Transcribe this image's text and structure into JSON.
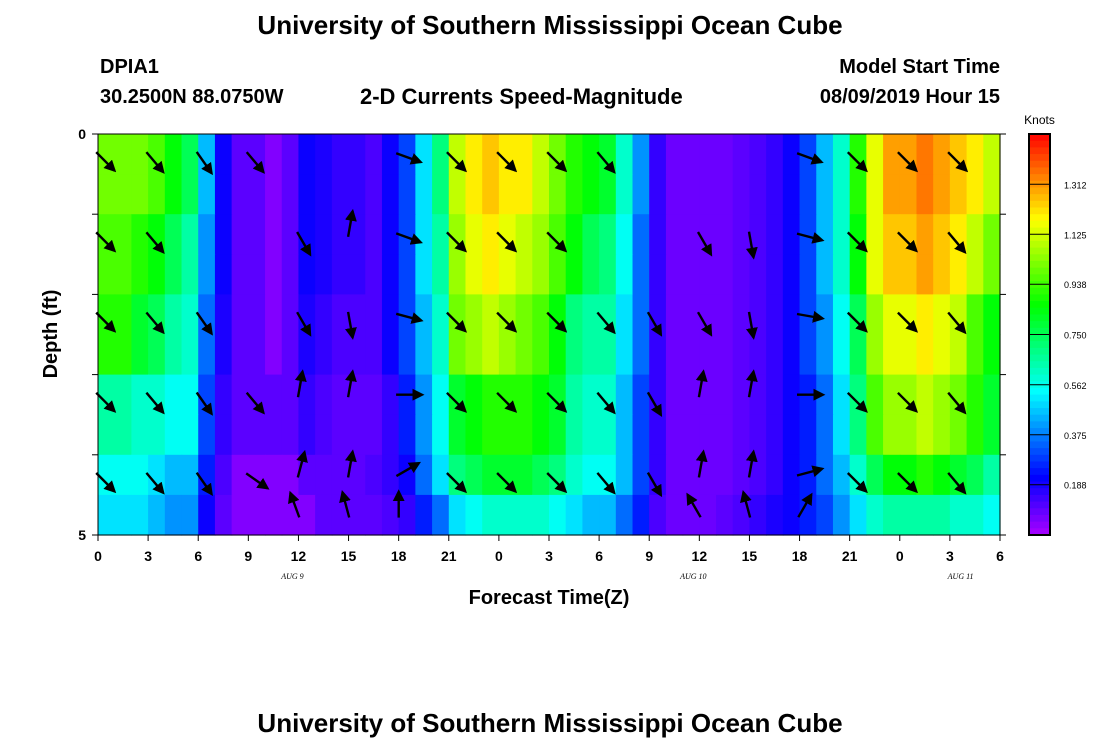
{
  "header": {
    "title": "University of Southern Mississippi Ocean Cube",
    "station_id": "DPIA1",
    "station_coords": "30.2500N 88.0750W",
    "subtitle": "2-D Currents Speed-Magnitude",
    "model_start_label": "Model Start Time",
    "model_start_value": "08/09/2019 Hour 15"
  },
  "footer": {
    "title": "University of Southern Mississippi Ocean Cube"
  },
  "chart_data": {
    "type": "heatmap",
    "title": "2-D Currents Speed-Magnitude",
    "xlabel": "Forecast Time(Z)",
    "ylabel": "Depth (ft)",
    "x_tick_labels": [
      "0",
      "3",
      "6",
      "9",
      "12",
      "15",
      "18",
      "21",
      "0",
      "3",
      "6",
      "9",
      "12",
      "15",
      "18",
      "21",
      "0",
      "3",
      "6"
    ],
    "x_ticks_hours": [
      0,
      3,
      6,
      9,
      12,
      15,
      18,
      21,
      24,
      27,
      30,
      33,
      36,
      39,
      42,
      45,
      48,
      51,
      54
    ],
    "x_range_hours": [
      0,
      54
    ],
    "date_labels": [
      {
        "text": "AUG 9",
        "hour": 12
      },
      {
        "text": "AUG 10",
        "hour": 36
      },
      {
        "text": "AUG 11",
        "hour": 52
      }
    ],
    "y_tick_labels": [
      "0",
      "5"
    ],
    "y_range": [
      0,
      5
    ],
    "colorbar": {
      "unit": "Knots",
      "tick_labels": [
        "1.312",
        "1.125",
        "0.938",
        "0.750",
        "0.562",
        "0.375",
        "0.188"
      ],
      "tick_values": [
        1.312,
        1.125,
        0.938,
        0.75,
        0.562,
        0.375,
        0.188
      ],
      "range": [
        0,
        1.5
      ]
    },
    "depth_rows": [
      0.25,
      0.75,
      1.25,
      1.75,
      2.25,
      2.75,
      3.25,
      3.75,
      4.25,
      4.75
    ],
    "time_cols_hours": [
      0,
      1,
      2,
      3,
      4,
      5,
      6,
      7,
      8,
      9,
      10,
      11,
      12,
      13,
      14,
      15,
      16,
      17,
      18,
      19,
      20,
      21,
      22,
      23,
      24,
      25,
      26,
      27,
      28,
      29,
      30,
      31,
      32,
      33,
      34,
      35,
      36,
      37,
      38,
      39,
      40,
      41,
      42,
      43,
      44,
      45,
      46,
      47,
      48,
      49,
      50,
      51,
      52,
      53
    ],
    "speed_grid": [
      [
        1.0,
        1.0,
        1.0,
        0.95,
        0.85,
        0.75,
        0.45,
        0.2,
        0.1,
        0.1,
        0.05,
        0.1,
        0.2,
        0.18,
        0.15,
        0.15,
        0.12,
        0.2,
        0.3,
        0.5,
        0.7,
        1.1,
        1.2,
        1.25,
        1.2,
        1.2,
        1.1,
        1.0,
        0.9,
        0.85,
        0.8,
        0.6,
        0.4,
        0.15,
        0.08,
        0.08,
        0.08,
        0.08,
        0.1,
        0.12,
        0.15,
        0.2,
        0.3,
        0.45,
        0.6,
        0.9,
        1.15,
        1.3,
        1.3,
        1.35,
        1.3,
        1.25,
        1.2,
        1.1
      ],
      [
        1.0,
        1.0,
        1.0,
        0.95,
        0.85,
        0.75,
        0.45,
        0.2,
        0.1,
        0.1,
        0.05,
        0.1,
        0.2,
        0.18,
        0.15,
        0.15,
        0.12,
        0.2,
        0.3,
        0.5,
        0.7,
        1.1,
        1.2,
        1.25,
        1.2,
        1.2,
        1.1,
        1.0,
        0.9,
        0.85,
        0.8,
        0.6,
        0.4,
        0.15,
        0.08,
        0.08,
        0.08,
        0.08,
        0.1,
        0.12,
        0.15,
        0.2,
        0.3,
        0.45,
        0.6,
        0.9,
        1.15,
        1.3,
        1.3,
        1.35,
        1.3,
        1.25,
        1.2,
        1.1
      ],
      [
        0.95,
        0.95,
        0.9,
        0.85,
        0.75,
        0.65,
        0.4,
        0.2,
        0.1,
        0.1,
        0.05,
        0.1,
        0.2,
        0.18,
        0.15,
        0.15,
        0.12,
        0.2,
        0.3,
        0.5,
        0.65,
        1.05,
        1.15,
        1.2,
        1.15,
        1.1,
        1.05,
        0.95,
        0.85,
        0.75,
        0.7,
        0.55,
        0.35,
        0.15,
        0.08,
        0.08,
        0.08,
        0.08,
        0.1,
        0.12,
        0.15,
        0.2,
        0.3,
        0.45,
        0.6,
        0.85,
        1.15,
        1.25,
        1.25,
        1.3,
        1.25,
        1.2,
        1.1,
        1.0
      ],
      [
        0.95,
        0.95,
        0.9,
        0.85,
        0.75,
        0.65,
        0.4,
        0.2,
        0.1,
        0.1,
        0.05,
        0.1,
        0.2,
        0.18,
        0.15,
        0.15,
        0.12,
        0.2,
        0.3,
        0.5,
        0.65,
        1.05,
        1.15,
        1.2,
        1.15,
        1.1,
        1.05,
        0.95,
        0.85,
        0.75,
        0.7,
        0.55,
        0.35,
        0.15,
        0.08,
        0.08,
        0.08,
        0.08,
        0.1,
        0.12,
        0.15,
        0.2,
        0.3,
        0.45,
        0.6,
        0.85,
        1.15,
        1.25,
        1.25,
        1.3,
        1.25,
        1.2,
        1.1,
        1.0
      ],
      [
        0.9,
        0.9,
        0.8,
        0.75,
        0.65,
        0.6,
        0.35,
        0.18,
        0.1,
        0.1,
        0.05,
        0.1,
        0.18,
        0.15,
        0.12,
        0.12,
        0.12,
        0.2,
        0.3,
        0.45,
        0.6,
        1.0,
        1.05,
        1.1,
        1.05,
        1.0,
        0.95,
        0.85,
        0.7,
        0.65,
        0.65,
        0.5,
        0.35,
        0.15,
        0.08,
        0.08,
        0.08,
        0.08,
        0.1,
        0.12,
        0.15,
        0.2,
        0.3,
        0.4,
        0.55,
        0.75,
        1.05,
        1.15,
        1.15,
        1.2,
        1.15,
        1.1,
        0.95,
        0.85
      ],
      [
        0.9,
        0.9,
        0.8,
        0.75,
        0.65,
        0.6,
        0.35,
        0.18,
        0.1,
        0.1,
        0.05,
        0.1,
        0.18,
        0.15,
        0.12,
        0.12,
        0.12,
        0.2,
        0.3,
        0.45,
        0.6,
        1.0,
        1.05,
        1.1,
        1.05,
        1.0,
        0.95,
        0.85,
        0.7,
        0.65,
        0.65,
        0.5,
        0.35,
        0.15,
        0.08,
        0.08,
        0.08,
        0.08,
        0.1,
        0.12,
        0.15,
        0.2,
        0.3,
        0.4,
        0.55,
        0.75,
        1.05,
        1.15,
        1.15,
        1.2,
        1.15,
        1.1,
        0.95,
        0.85
      ],
      [
        0.65,
        0.65,
        0.6,
        0.6,
        0.55,
        0.55,
        0.3,
        0.15,
        0.1,
        0.1,
        0.1,
        0.1,
        0.15,
        0.12,
        0.1,
        0.1,
        0.1,
        0.15,
        0.25,
        0.4,
        0.55,
        0.8,
        0.85,
        0.9,
        0.9,
        0.9,
        0.85,
        0.8,
        0.65,
        0.6,
        0.6,
        0.45,
        0.3,
        0.15,
        0.08,
        0.08,
        0.08,
        0.08,
        0.1,
        0.12,
        0.15,
        0.2,
        0.25,
        0.35,
        0.5,
        0.7,
        0.95,
        1.05,
        1.05,
        1.1,
        1.05,
        1.0,
        0.9,
        0.8
      ],
      [
        0.65,
        0.65,
        0.6,
        0.6,
        0.55,
        0.55,
        0.3,
        0.15,
        0.1,
        0.1,
        0.1,
        0.1,
        0.15,
        0.12,
        0.1,
        0.1,
        0.1,
        0.15,
        0.25,
        0.4,
        0.55,
        0.8,
        0.85,
        0.9,
        0.9,
        0.9,
        0.85,
        0.8,
        0.65,
        0.6,
        0.6,
        0.45,
        0.3,
        0.15,
        0.08,
        0.08,
        0.08,
        0.08,
        0.1,
        0.12,
        0.15,
        0.2,
        0.25,
        0.35,
        0.5,
        0.7,
        0.95,
        1.05,
        1.05,
        1.1,
        1.05,
        1.0,
        0.9,
        0.8
      ],
      [
        0.55,
        0.55,
        0.55,
        0.5,
        0.45,
        0.45,
        0.25,
        0.12,
        0.05,
        0.05,
        0.05,
        0.05,
        0.1,
        0.1,
        0.1,
        0.1,
        0.12,
        0.15,
        0.2,
        0.35,
        0.5,
        0.7,
        0.75,
        0.8,
        0.8,
        0.8,
        0.75,
        0.7,
        0.6,
        0.55,
        0.55,
        0.45,
        0.3,
        0.15,
        0.08,
        0.08,
        0.08,
        0.08,
        0.1,
        0.12,
        0.15,
        0.2,
        0.25,
        0.35,
        0.45,
        0.6,
        0.75,
        0.85,
        0.85,
        0.9,
        0.85,
        0.8,
        0.75,
        0.65
      ],
      [
        0.5,
        0.5,
        0.5,
        0.45,
        0.4,
        0.4,
        0.2,
        0.1,
        0.05,
        0.05,
        0.05,
        0.05,
        0.05,
        0.1,
        0.1,
        0.1,
        0.1,
        0.12,
        0.15,
        0.25,
        0.35,
        0.5,
        0.55,
        0.6,
        0.6,
        0.6,
        0.6,
        0.55,
        0.5,
        0.45,
        0.45,
        0.35,
        0.25,
        0.12,
        0.08,
        0.08,
        0.08,
        0.1,
        0.12,
        0.15,
        0.18,
        0.2,
        0.25,
        0.3,
        0.4,
        0.5,
        0.6,
        0.65,
        0.65,
        0.65,
        0.65,
        0.6,
        0.6,
        0.55
      ]
    ],
    "arrow_rows_depth": [
      0.25,
      1.25,
      2.25,
      3.25,
      4.25,
      4.75
    ],
    "arrows": [
      {
        "hour": 0,
        "row": 0,
        "angle": 135
      },
      {
        "hour": 3,
        "row": 0,
        "angle": 140
      },
      {
        "hour": 6,
        "row": 0,
        "angle": 145
      },
      {
        "hour": 9,
        "row": 0,
        "angle": 140
      },
      {
        "hour": 18,
        "row": 0,
        "angle": 110
      },
      {
        "hour": 21,
        "row": 0,
        "angle": 135
      },
      {
        "hour": 24,
        "row": 0,
        "angle": 135
      },
      {
        "hour": 27,
        "row": 0,
        "angle": 135
      },
      {
        "hour": 30,
        "row": 0,
        "angle": 140
      },
      {
        "hour": 42,
        "row": 0,
        "angle": 110
      },
      {
        "hour": 45,
        "row": 0,
        "angle": 135
      },
      {
        "hour": 48,
        "row": 0,
        "angle": 135
      },
      {
        "hour": 51,
        "row": 0,
        "angle": 135
      },
      {
        "hour": 0,
        "row": 1,
        "angle": 135
      },
      {
        "hour": 3,
        "row": 1,
        "angle": 140
      },
      {
        "hour": 12,
        "row": 1,
        "angle": 150
      },
      {
        "hour": 15,
        "row": 1,
        "angle": 10
      },
      {
        "hour": 18,
        "row": 1,
        "angle": 110
      },
      {
        "hour": 21,
        "row": 1,
        "angle": 135
      },
      {
        "hour": 24,
        "row": 1,
        "angle": 135
      },
      {
        "hour": 27,
        "row": 1,
        "angle": 135
      },
      {
        "hour": 36,
        "row": 1,
        "angle": 150
      },
      {
        "hour": 39,
        "row": 1,
        "angle": 170
      },
      {
        "hour": 42,
        "row": 1,
        "angle": 105
      },
      {
        "hour": 45,
        "row": 1,
        "angle": 135
      },
      {
        "hour": 48,
        "row": 1,
        "angle": 135
      },
      {
        "hour": 51,
        "row": 1,
        "angle": 140
      },
      {
        "hour": 0,
        "row": 2,
        "angle": 135
      },
      {
        "hour": 3,
        "row": 2,
        "angle": 140
      },
      {
        "hour": 6,
        "row": 2,
        "angle": 145
      },
      {
        "hour": 12,
        "row": 2,
        "angle": 150
      },
      {
        "hour": 15,
        "row": 2,
        "angle": 170
      },
      {
        "hour": 18,
        "row": 2,
        "angle": 105
      },
      {
        "hour": 21,
        "row": 2,
        "angle": 135
      },
      {
        "hour": 24,
        "row": 2,
        "angle": 135
      },
      {
        "hour": 27,
        "row": 2,
        "angle": 135
      },
      {
        "hour": 30,
        "row": 2,
        "angle": 140
      },
      {
        "hour": 33,
        "row": 2,
        "angle": 150
      },
      {
        "hour": 36,
        "row": 2,
        "angle": 150
      },
      {
        "hour": 39,
        "row": 2,
        "angle": 170
      },
      {
        "hour": 42,
        "row": 2,
        "angle": 100
      },
      {
        "hour": 45,
        "row": 2,
        "angle": 135
      },
      {
        "hour": 48,
        "row": 2,
        "angle": 135
      },
      {
        "hour": 51,
        "row": 2,
        "angle": 140
      },
      {
        "hour": 0,
        "row": 3,
        "angle": 135
      },
      {
        "hour": 3,
        "row": 3,
        "angle": 140
      },
      {
        "hour": 6,
        "row": 3,
        "angle": 145
      },
      {
        "hour": 9,
        "row": 3,
        "angle": 140
      },
      {
        "hour": 12,
        "row": 3,
        "angle": 10
      },
      {
        "hour": 15,
        "row": 3,
        "angle": 10
      },
      {
        "hour": 18,
        "row": 3,
        "angle": 90
      },
      {
        "hour": 21,
        "row": 3,
        "angle": 135
      },
      {
        "hour": 24,
        "row": 3,
        "angle": 135
      },
      {
        "hour": 27,
        "row": 3,
        "angle": 135
      },
      {
        "hour": 30,
        "row": 3,
        "angle": 140
      },
      {
        "hour": 33,
        "row": 3,
        "angle": 150
      },
      {
        "hour": 36,
        "row": 3,
        "angle": 10
      },
      {
        "hour": 39,
        "row": 3,
        "angle": 10
      },
      {
        "hour": 42,
        "row": 3,
        "angle": 90
      },
      {
        "hour": 45,
        "row": 3,
        "angle": 135
      },
      {
        "hour": 48,
        "row": 3,
        "angle": 135
      },
      {
        "hour": 51,
        "row": 3,
        "angle": 140
      },
      {
        "hour": 0,
        "row": 4,
        "angle": 135
      },
      {
        "hour": 3,
        "row": 4,
        "angle": 140
      },
      {
        "hour": 6,
        "row": 4,
        "angle": 145
      },
      {
        "hour": 9,
        "row": 4,
        "angle": 125
      },
      {
        "hour": 12,
        "row": 4,
        "angle": 15
      },
      {
        "hour": 15,
        "row": 4,
        "angle": 10
      },
      {
        "hour": 18,
        "row": 4,
        "angle": 60
      },
      {
        "hour": 21,
        "row": 4,
        "angle": 135
      },
      {
        "hour": 24,
        "row": 4,
        "angle": 135
      },
      {
        "hour": 27,
        "row": 4,
        "angle": 135
      },
      {
        "hour": 30,
        "row": 4,
        "angle": 140
      },
      {
        "hour": 33,
        "row": 4,
        "angle": 150
      },
      {
        "hour": 36,
        "row": 4,
        "angle": 10
      },
      {
        "hour": 39,
        "row": 4,
        "angle": 10
      },
      {
        "hour": 42,
        "row": 4,
        "angle": 75
      },
      {
        "hour": 45,
        "row": 4,
        "angle": 135
      },
      {
        "hour": 48,
        "row": 4,
        "angle": 135
      },
      {
        "hour": 51,
        "row": 4,
        "angle": 140
      },
      {
        "hour": 12,
        "row": 5,
        "angle": 340
      },
      {
        "hour": 15,
        "row": 5,
        "angle": 345
      },
      {
        "hour": 18,
        "row": 5,
        "angle": 360
      },
      {
        "hour": 36,
        "row": 5,
        "angle": 330
      },
      {
        "hour": 39,
        "row": 5,
        "angle": 345
      },
      {
        "hour": 42,
        "row": 5,
        "angle": 30
      }
    ]
  }
}
